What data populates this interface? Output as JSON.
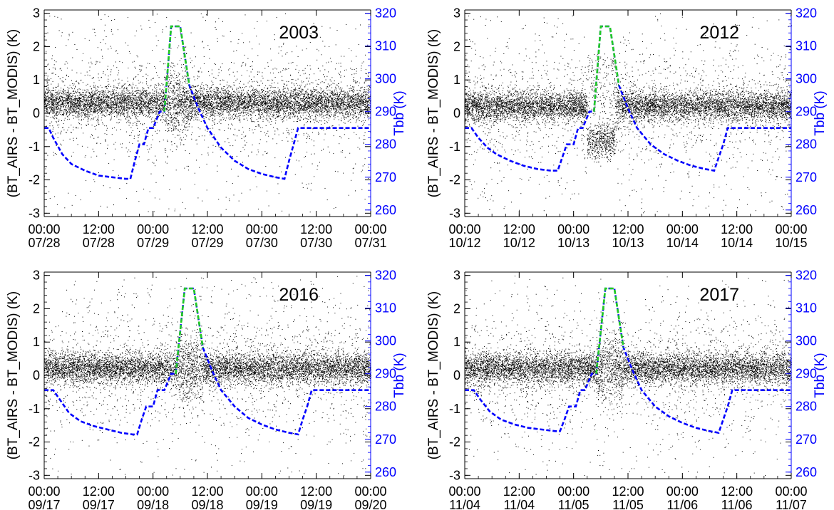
{
  "figure": {
    "panel_count": 4
  },
  "style": {
    "left_axis_color": "#000000",
    "right_axis_color": "#0000ff",
    "scatter_color": "#000000",
    "tbb_line_color": "#0000ff",
    "tbb_hot_segment_color": "#22cc22"
  },
  "chart_data": [
    {
      "type": "scatter",
      "panel_year": "2003",
      "ylabel_left": "(BT_AIRS - BT_MODIS) (K)",
      "ylabel_right": "Tbb (K)",
      "ylim_left": [
        -3.1,
        3.1
      ],
      "ylim_right": [
        258.0,
        321.0
      ],
      "yticks_left": [
        "-3",
        "-2",
        "-1",
        "0",
        "1",
        "2",
        "3"
      ],
      "yticks_right": [
        "260",
        "270",
        "280",
        "290",
        "300",
        "310",
        "320"
      ],
      "xlim_hours": [
        0,
        72
      ],
      "xticks": [
        {
          "time": "00:00",
          "date": "07/28"
        },
        {
          "time": "12:00",
          "date": "07/28"
        },
        {
          "time": "00:00",
          "date": "07/29"
        },
        {
          "time": "12:00",
          "date": "07/29"
        },
        {
          "time": "00:00",
          "date": "07/30"
        },
        {
          "time": "12:00",
          "date": "07/30"
        },
        {
          "time": "00:00",
          "date": "07/31"
        }
      ],
      "scatter_summary": {
        "mean": 0.32,
        "band_halfwidth": 0.3,
        "spread_min": -3.0,
        "spread_max": 3.0
      },
      "tbb_series": {
        "name": "Tbb",
        "points": [
          [
            0,
            285
          ],
          [
            1,
            285
          ],
          [
            2,
            282
          ],
          [
            4,
            277
          ],
          [
            6,
            274
          ],
          [
            9,
            272
          ],
          [
            12,
            270.5
          ],
          [
            15,
            270
          ],
          [
            18,
            269.5
          ],
          [
            19,
            269.5
          ],
          [
            20,
            275
          ],
          [
            21,
            280
          ],
          [
            22,
            280
          ],
          [
            23,
            285
          ],
          [
            24,
            285
          ],
          [
            25.5,
            290
          ],
          [
            26.5,
            290
          ],
          [
            28,
            316
          ],
          [
            30,
            316
          ],
          [
            32,
            298
          ],
          [
            34,
            291
          ],
          [
            36,
            285
          ],
          [
            39,
            279
          ],
          [
            42,
            275
          ],
          [
            45,
            272.5
          ],
          [
            48,
            271
          ],
          [
            51,
            270
          ],
          [
            53,
            269.5
          ],
          [
            54,
            275
          ],
          [
            55,
            280
          ],
          [
            56,
            285
          ],
          [
            60,
            285
          ],
          [
            66,
            285
          ],
          [
            72,
            285
          ]
        ],
        "hot_range": [
          26.5,
          32
        ]
      }
    },
    {
      "type": "scatter",
      "panel_year": "2012",
      "ylabel_left": "(BT_AIRS - BT_MODIS) (K)",
      "ylabel_right": "Tbb (K)",
      "ylim_left": [
        -3.1,
        3.1
      ],
      "ylim_right": [
        258.0,
        321.0
      ],
      "yticks_left": [
        "-3",
        "-2",
        "-1",
        "0",
        "1",
        "2",
        "3"
      ],
      "yticks_right": [
        "260",
        "270",
        "280",
        "290",
        "300",
        "310",
        "320"
      ],
      "xlim_hours": [
        0,
        72
      ],
      "xticks": [
        {
          "time": "00:00",
          "date": "10/12"
        },
        {
          "time": "12:00",
          "date": "10/12"
        },
        {
          "time": "00:00",
          "date": "10/13"
        },
        {
          "time": "12:00",
          "date": "10/13"
        },
        {
          "time": "00:00",
          "date": "10/14"
        },
        {
          "time": "12:00",
          "date": "10/14"
        },
        {
          "time": "00:00",
          "date": "10/15"
        }
      ],
      "scatter_summary": {
        "mean": 0.22,
        "band_halfwidth": 0.3,
        "spread_min": -3.0,
        "spread_max": 3.0,
        "anomaly_hours": [
          27,
          33
        ],
        "anomaly_mean": -0.85
      },
      "tbb_series": {
        "name": "Tbb",
        "points": [
          [
            0,
            285
          ],
          [
            1.5,
            285
          ],
          [
            3,
            282
          ],
          [
            5,
            279
          ],
          [
            7,
            277
          ],
          [
            10,
            275
          ],
          [
            13,
            273.5
          ],
          [
            16,
            272.5
          ],
          [
            19,
            272
          ],
          [
            20.5,
            272
          ],
          [
            21.5,
            276
          ],
          [
            22.5,
            280
          ],
          [
            24,
            280
          ],
          [
            25,
            285
          ],
          [
            26,
            285
          ],
          [
            27.5,
            290
          ],
          [
            28.5,
            290
          ],
          [
            30,
            316
          ],
          [
            32,
            316
          ],
          [
            34,
            298
          ],
          [
            36,
            291
          ],
          [
            38,
            285
          ],
          [
            41,
            280
          ],
          [
            44,
            277
          ],
          [
            47,
            275
          ],
          [
            50,
            273.5
          ],
          [
            53,
            272.5
          ],
          [
            55,
            272
          ],
          [
            56,
            276
          ],
          [
            57,
            280
          ],
          [
            58,
            285
          ],
          [
            64,
            285
          ],
          [
            72,
            285
          ]
        ],
        "hot_range": [
          28.5,
          34
        ]
      }
    },
    {
      "type": "scatter",
      "panel_year": "2016",
      "ylabel_left": "(BT_AIRS - BT_MODIS) (K)",
      "ylabel_right": "Tbb (K)",
      "ylim_left": [
        -3.1,
        3.1
      ],
      "ylim_right": [
        258.0,
        321.0
      ],
      "yticks_left": [
        "-3",
        "-2",
        "-1",
        "0",
        "1",
        "2",
        "3"
      ],
      "yticks_right": [
        "260",
        "270",
        "280",
        "290",
        "300",
        "310",
        "320"
      ],
      "xlim_hours": [
        0,
        72
      ],
      "xticks": [
        {
          "time": "00:00",
          "date": "09/17"
        },
        {
          "time": "12:00",
          "date": "09/17"
        },
        {
          "time": "00:00",
          "date": "09/18"
        },
        {
          "time": "12:00",
          "date": "09/18"
        },
        {
          "time": "00:00",
          "date": "09/19"
        },
        {
          "time": "12:00",
          "date": "09/19"
        },
        {
          "time": "00:00",
          "date": "09/20"
        }
      ],
      "scatter_summary": {
        "mean": 0.22,
        "band_halfwidth": 0.3,
        "spread_min": -3.0,
        "spread_max": 3.0
      },
      "tbb_series": {
        "name": "Tbb",
        "points": [
          [
            0,
            285
          ],
          [
            2,
            285
          ],
          [
            3.5,
            282
          ],
          [
            5.5,
            278
          ],
          [
            8,
            275.5
          ],
          [
            11,
            274
          ],
          [
            14,
            273
          ],
          [
            17,
            272
          ],
          [
            19.5,
            271.5
          ],
          [
            20.5,
            271.5
          ],
          [
            21.5,
            276
          ],
          [
            22.5,
            280
          ],
          [
            24,
            280
          ],
          [
            25,
            285
          ],
          [
            26.5,
            285
          ],
          [
            28,
            290
          ],
          [
            29,
            290
          ],
          [
            31,
            316
          ],
          [
            33,
            316
          ],
          [
            35,
            298
          ],
          [
            37,
            291
          ],
          [
            39,
            285
          ],
          [
            42,
            280
          ],
          [
            45,
            276.5
          ],
          [
            48,
            274.5
          ],
          [
            51,
            273
          ],
          [
            54,
            272
          ],
          [
            56,
            271.5
          ],
          [
            57,
            276
          ],
          [
            58,
            280
          ],
          [
            59,
            285
          ],
          [
            65,
            285
          ],
          [
            72,
            285
          ]
        ],
        "hot_range": [
          29,
          35
        ]
      }
    },
    {
      "type": "scatter",
      "panel_year": "2017",
      "ylabel_left": "(BT_AIRS - BT_MODIS) (K)",
      "ylabel_right": "Tbb (K)",
      "ylim_left": [
        -3.1,
        3.1
      ],
      "ylim_right": [
        258.0,
        321.0
      ],
      "yticks_left": [
        "-3",
        "-2",
        "-1",
        "0",
        "1",
        "2",
        "3"
      ],
      "yticks_right": [
        "260",
        "270",
        "280",
        "290",
        "300",
        "310",
        "320"
      ],
      "xlim_hours": [
        0,
        72
      ],
      "xticks": [
        {
          "time": "00:00",
          "date": "11/04"
        },
        {
          "time": "12:00",
          "date": "11/04"
        },
        {
          "time": "00:00",
          "date": "11/05"
        },
        {
          "time": "12:00",
          "date": "11/05"
        },
        {
          "time": "00:00",
          "date": "11/06"
        },
        {
          "time": "12:00",
          "date": "11/06"
        },
        {
          "time": "00:00",
          "date": "11/07"
        }
      ],
      "scatter_summary": {
        "mean": 0.22,
        "band_halfwidth": 0.3,
        "spread_min": -3.0,
        "spread_max": 3.0
      },
      "tbb_series": {
        "name": "Tbb",
        "points": [
          [
            0,
            285
          ],
          [
            2,
            285
          ],
          [
            3.5,
            282
          ],
          [
            5.5,
            278.5
          ],
          [
            8,
            276
          ],
          [
            11,
            274.5
          ],
          [
            14,
            273.5
          ],
          [
            17,
            273
          ],
          [
            20,
            272.5
          ],
          [
            21,
            272.5
          ],
          [
            22,
            276
          ],
          [
            23,
            280
          ],
          [
            24.5,
            280
          ],
          [
            25.5,
            285
          ],
          [
            26.5,
            285
          ],
          [
            28,
            290
          ],
          [
            29,
            290
          ],
          [
            31,
            316
          ],
          [
            33,
            316
          ],
          [
            35,
            298
          ],
          [
            37,
            291
          ],
          [
            39,
            285
          ],
          [
            42,
            280
          ],
          [
            45,
            277
          ],
          [
            48,
            275
          ],
          [
            51,
            273.5
          ],
          [
            54,
            272.5
          ],
          [
            56,
            272
          ],
          [
            57,
            276
          ],
          [
            58,
            280
          ],
          [
            59,
            285
          ],
          [
            65,
            285
          ],
          [
            72,
            285
          ]
        ],
        "hot_range": [
          29,
          35
        ]
      }
    }
  ]
}
